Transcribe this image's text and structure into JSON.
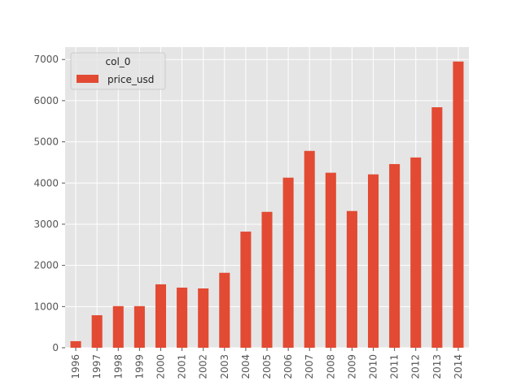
{
  "chart_data": {
    "type": "bar",
    "categories": [
      "1996",
      "1997",
      "1998",
      "1999",
      "2000",
      "2001",
      "2002",
      "2003",
      "2004",
      "2005",
      "2006",
      "2007",
      "2008",
      "2009",
      "2010",
      "2011",
      "2012",
      "2013",
      "2014"
    ],
    "series": [
      {
        "name": "price_usd",
        "values": [
          160,
          790,
          1010,
          1010,
          1540,
          1460,
          1440,
          1820,
          2820,
          3300,
          4130,
          4780,
          4250,
          3320,
          4210,
          4460,
          4620,
          5840,
          6950
        ]
      }
    ],
    "legend": {
      "title": "col_0",
      "position": "upper left"
    },
    "yticks": [
      0,
      1000,
      2000,
      3000,
      4000,
      5000,
      6000,
      7000
    ],
    "ylim": [
      0,
      7300
    ],
    "xlabel": "",
    "ylabel": "",
    "grid": true,
    "colors": {
      "bar": "#E24A33",
      "background": "#E5E5E5",
      "grid": "#FFFFFF",
      "tick_text": "#555555"
    }
  }
}
